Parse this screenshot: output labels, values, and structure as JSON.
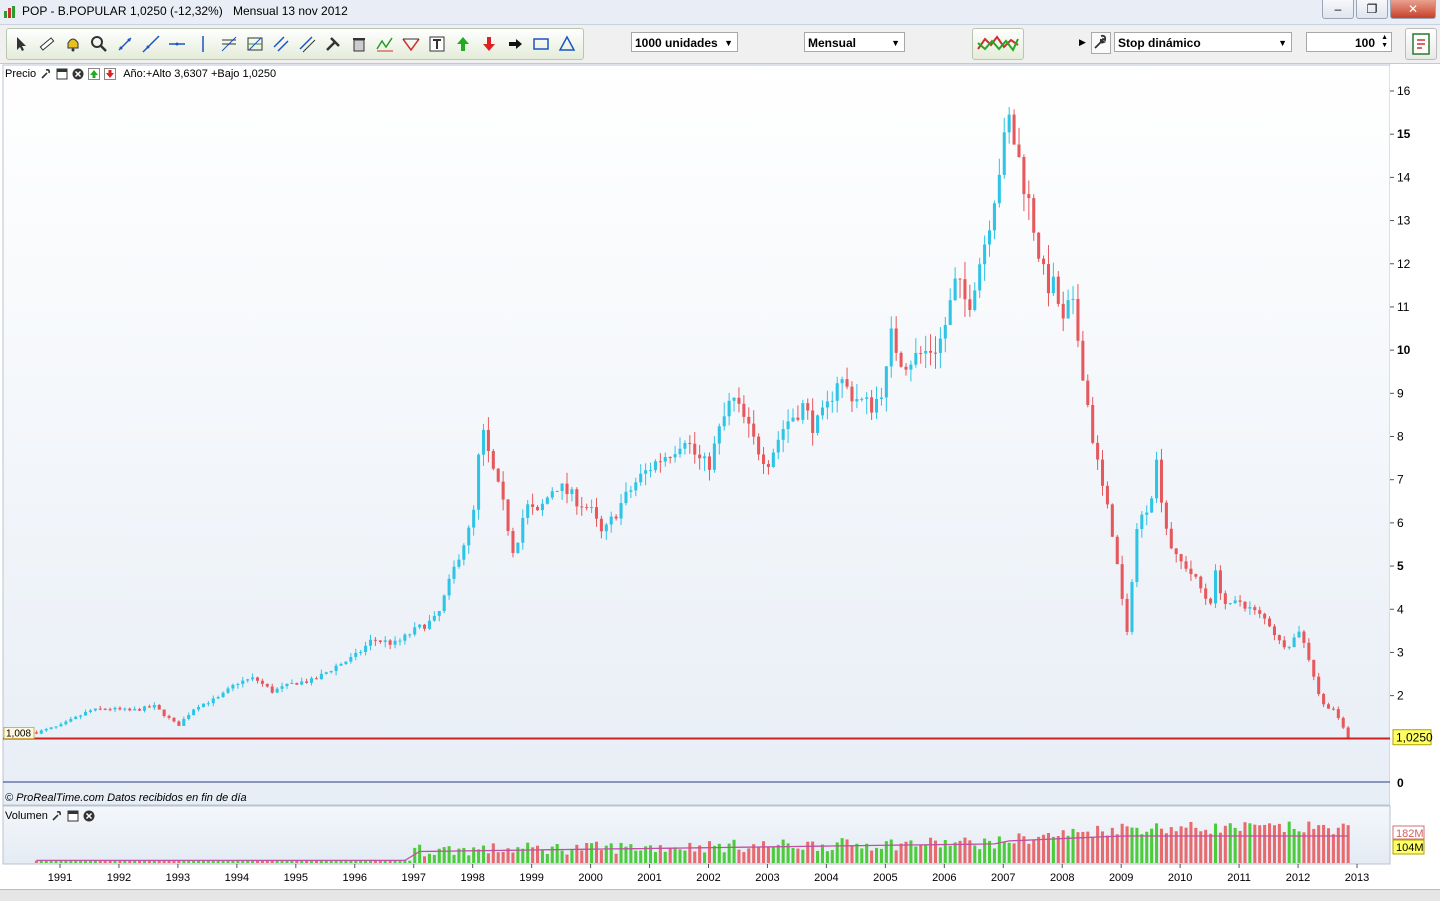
{
  "window": {
    "instrument": "POP - B.POPULAR",
    "price_change": "1,0250 (-12,32%)",
    "period_date": "Mensual  13 nov 2012"
  },
  "toolbar": {
    "units_select": "1000 unidades",
    "period_select": "Mensual",
    "stop_select": "Stop dinámico",
    "qty_input": "100",
    "tool_icons": [
      "cursor-icon",
      "ruler-icon",
      "alarm-bell-icon",
      "zoom-icon",
      "line-icon",
      "line-extend-icon",
      "horizontal-line-icon",
      "vertical-line-icon",
      "fibonacci-icon",
      "grid-icon",
      "channel-icon",
      "parallel-icon",
      "tools-icon",
      "trash-icon",
      "zigzag-icon",
      "wave-icon",
      "text-icon",
      "buy-arrow-icon",
      "sell-arrow-icon",
      "exit-arrow-icon",
      "rectangle-icon",
      "triangle-icon"
    ]
  },
  "price_panel": {
    "title": "Precio",
    "info": "Año:+Alto 3,6307 +Bajo 1,0250",
    "watermark": "© ProRealTime.com  Datos recibidos en fin de día",
    "marker_label": "1,008",
    "last_price_label": "1,0250",
    "zero_label": "0"
  },
  "volume_panel": {
    "title": "Volumen",
    "label_high": "182M",
    "label_low": "104M"
  },
  "colors": {
    "up": "#2ec4e6",
    "down": "#e6585c",
    "vol_up": "#4ccc3a",
    "vol_down": "#e66a6e",
    "support": "#cc2222",
    "bg_top": "#ffffff",
    "bg_bottom": "#e8eef6"
  },
  "chart_data": [
    {
      "type": "candlestick",
      "title": "Precio",
      "interval": "monthly",
      "xlim": [
        1990.5,
        2013.1
      ],
      "ylim": [
        0,
        16.3
      ],
      "x_ticks": [
        "1991",
        "1992",
        "1993",
        "1994",
        "1995",
        "1996",
        "1997",
        "1998",
        "1999",
        "2000",
        "2001",
        "2002",
        "2003",
        "2004",
        "2005",
        "2006",
        "2007",
        "2008",
        "2009",
        "2010",
        "2011",
        "2012",
        "2013"
      ],
      "y_ticks": [
        2,
        3,
        4,
        5,
        6,
        7,
        8,
        9,
        10,
        11,
        12,
        13,
        14,
        15,
        16
      ],
      "y_ticks_bold": [
        5,
        10,
        15
      ],
      "support_line": 1.008,
      "last_price": 1.025,
      "anchors": [
        [
          1990.6,
          1.15
        ],
        [
          1991.0,
          1.3
        ],
        [
          1991.5,
          1.65
        ],
        [
          1991.8,
          1.7
        ],
        [
          1992.2,
          1.65
        ],
        [
          1992.6,
          1.75
        ],
        [
          1993.0,
          1.3
        ],
        [
          1993.3,
          1.75
        ],
        [
          1993.7,
          1.95
        ],
        [
          1994.0,
          2.3
        ],
        [
          1994.3,
          2.4
        ],
        [
          1994.6,
          2.1
        ],
        [
          1995.0,
          2.3
        ],
        [
          1995.3,
          2.35
        ],
        [
          1995.7,
          2.7
        ],
        [
          1996.0,
          2.9
        ],
        [
          1996.3,
          3.3
        ],
        [
          1996.7,
          3.2
        ],
        [
          1997.0,
          3.5
        ],
        [
          1997.4,
          3.8
        ],
        [
          1997.6,
          4.6
        ],
        [
          1997.8,
          5.4
        ],
        [
          1998.0,
          6.0
        ],
        [
          1998.15,
          8.2
        ],
        [
          1998.3,
          7.4
        ],
        [
          1998.5,
          6.5
        ],
        [
          1998.7,
          5.3
        ],
        [
          1998.9,
          6.4
        ],
        [
          1999.1,
          6.2
        ],
        [
          1999.4,
          6.9
        ],
        [
          1999.7,
          6.6
        ],
        [
          2000.0,
          6.3
        ],
        [
          2000.2,
          5.7
        ],
        [
          2000.5,
          6.4
        ],
        [
          2000.8,
          7.0
        ],
        [
          2001.1,
          7.4
        ],
        [
          2001.4,
          7.7
        ],
        [
          2001.6,
          8.0
        ],
        [
          2001.8,
          7.5
        ],
        [
          2002.0,
          7.3
        ],
        [
          2002.2,
          8.2
        ],
        [
          2002.4,
          8.9
        ],
        [
          2002.6,
          8.4
        ],
        [
          2002.8,
          7.8
        ],
        [
          2003.0,
          7.4
        ],
        [
          2003.3,
          8.3
        ],
        [
          2003.6,
          8.7
        ],
        [
          2003.8,
          8.2
        ],
        [
          2004.0,
          8.6
        ],
        [
          2004.2,
          9.4
        ],
        [
          2004.4,
          9.0
        ],
        [
          2004.6,
          8.8
        ],
        [
          2004.8,
          8.7
        ],
        [
          2005.0,
          9.3
        ],
        [
          2005.1,
          10.3
        ],
        [
          2005.3,
          9.7
        ],
        [
          2005.6,
          9.9
        ],
        [
          2005.9,
          10.1
        ],
        [
          2006.0,
          10.5
        ],
        [
          2006.2,
          11.6
        ],
        [
          2006.4,
          11.0
        ],
        [
          2006.7,
          12.6
        ],
        [
          2006.9,
          14.0
        ],
        [
          2007.1,
          15.3
        ],
        [
          2007.3,
          14.2
        ],
        [
          2007.5,
          13.0
        ],
        [
          2007.7,
          11.6
        ],
        [
          2007.9,
          11.4
        ],
        [
          2008.0,
          10.5
        ],
        [
          2008.15,
          11.2
        ],
        [
          2008.3,
          10.0
        ],
        [
          2008.5,
          8.1
        ],
        [
          2008.65,
          7.0
        ],
        [
          2008.85,
          5.8
        ],
        [
          2009.1,
          3.4
        ],
        [
          2009.25,
          5.8
        ],
        [
          2009.5,
          6.6
        ],
        [
          2009.6,
          7.4
        ],
        [
          2009.75,
          6.0
        ],
        [
          2009.9,
          5.2
        ],
        [
          2010.1,
          5.0
        ],
        [
          2010.3,
          4.6
        ],
        [
          2010.5,
          4.1
        ],
        [
          2010.6,
          4.8
        ],
        [
          2010.8,
          4.0
        ],
        [
          2011.0,
          4.2
        ],
        [
          2011.2,
          4.0
        ],
        [
          2011.5,
          3.7
        ],
        [
          2011.7,
          3.2
        ],
        [
          2011.9,
          3.2
        ],
        [
          2012.0,
          3.6
        ],
        [
          2012.2,
          2.8
        ],
        [
          2012.4,
          1.8
        ],
        [
          2012.6,
          1.7
        ],
        [
          2012.7,
          1.4
        ],
        [
          2012.87,
          1.03
        ]
      ]
    },
    {
      "type": "bar",
      "title": "Volumen",
      "label_values": [
        "182M",
        "104M"
      ]
    }
  ]
}
